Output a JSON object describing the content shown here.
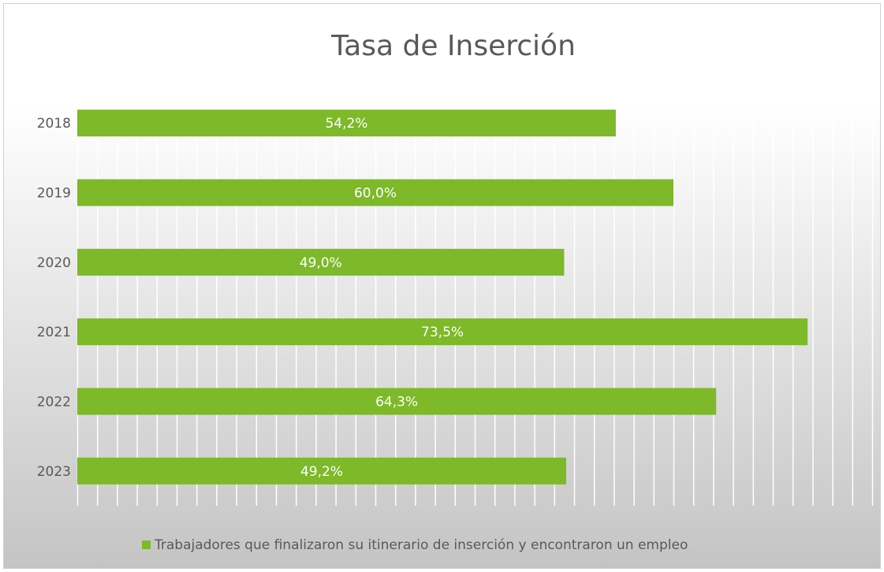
{
  "chart_data": {
    "type": "bar",
    "orientation": "horizontal",
    "title": "Tasa de Inserción",
    "categories": [
      "2018",
      "2019",
      "2020",
      "2021",
      "2022",
      "2023"
    ],
    "series": [
      {
        "name": "Trabajadores que finalizaron su itinerario de inserción y encontraron un empleo",
        "color": "#7db928",
        "values": [
          54.2,
          60.0,
          49.0,
          73.5,
          64.3,
          49.2
        ],
        "value_labels": [
          "54,2%",
          "60,0%",
          "49,0%",
          "73,5%",
          "64,3%",
          "49,2%"
        ]
      }
    ],
    "xlim": [
      0,
      80
    ],
    "xticks": [
      0,
      2,
      4,
      6,
      8,
      10,
      12,
      14,
      16,
      18,
      20,
      22,
      24,
      26,
      28,
      30,
      32,
      34,
      36,
      38,
      40,
      42,
      44,
      46,
      48,
      50,
      52,
      54,
      56,
      58,
      60,
      62,
      64,
      66,
      68,
      70,
      72,
      74,
      76,
      78,
      80
    ],
    "grid": true,
    "legend": "bottom"
  }
}
